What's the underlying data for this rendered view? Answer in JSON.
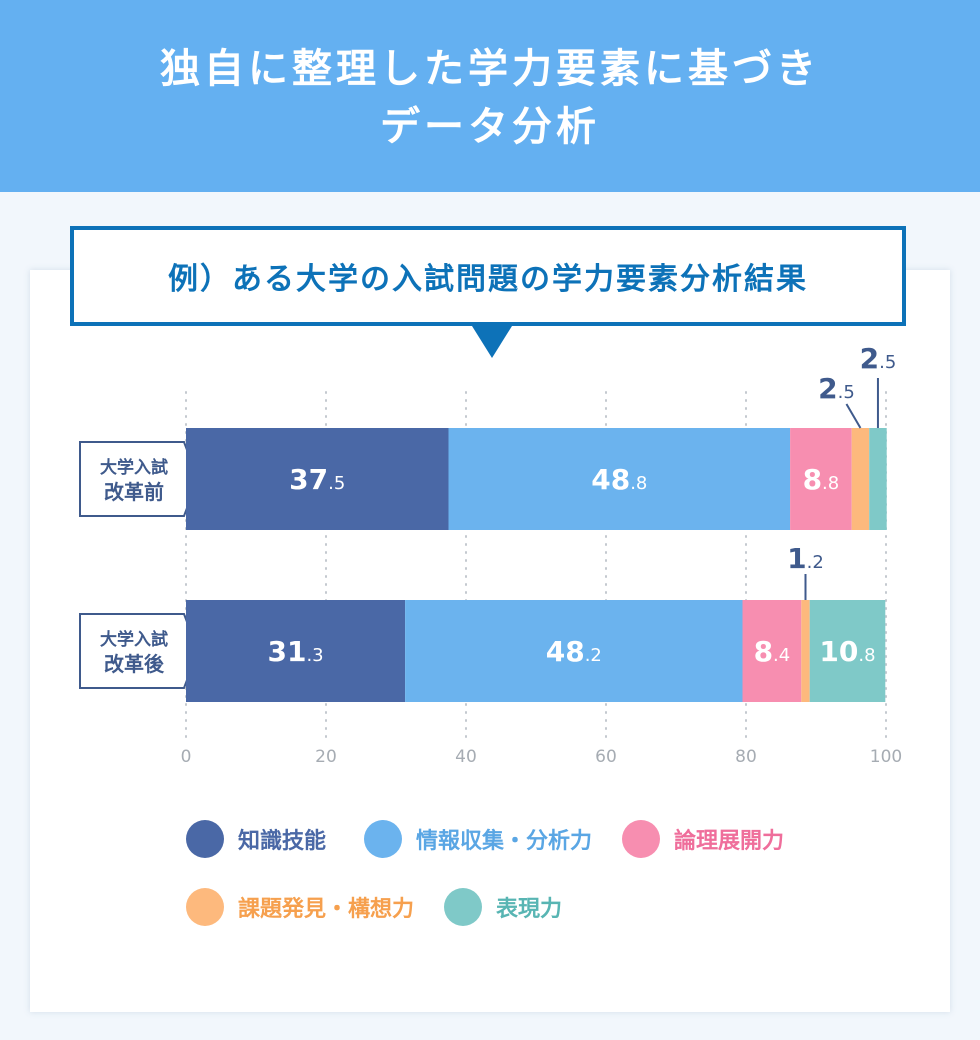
{
  "header": {
    "title_line1": "独自に整理した学力要素に基づき",
    "title_line2": "データ分析"
  },
  "example_title": "例）ある大学の入試問題の学力要素分析結果",
  "chart_data": {
    "type": "bar",
    "orientation": "horizontal",
    "stacked": true,
    "categories": [
      [
        "大学入試",
        "改革前"
      ],
      [
        "大学入試",
        "改革後"
      ]
    ],
    "series": [
      {
        "name": "知識技能",
        "values": [
          37.5,
          31.3
        ],
        "color": "#4a68a6"
      },
      {
        "name": "情報収集・分析力",
        "values": [
          48.8,
          48.2
        ],
        "color": "#6bb3ee"
      },
      {
        "name": "論理展開力",
        "values": [
          8.8,
          8.4
        ],
        "color": "#f78eb0"
      },
      {
        "name": "課題発見・構想力",
        "values": [
          2.5,
          1.2
        ],
        "color": "#fdb97d"
      },
      {
        "name": "表現力",
        "values": [
          2.5,
          10.8
        ],
        "color": "#7fc9c8"
      }
    ],
    "xlim": [
      0,
      100
    ],
    "xticks": [
      "0",
      "20",
      "40",
      "60",
      "80",
      "100"
    ],
    "grid": true,
    "legend_position": "bottom",
    "legend_text_colors": [
      "#4a68a6",
      "#5aa6e4",
      "#ef6e9b",
      "#f6a04e",
      "#58b5b3"
    ],
    "label_color": "#3f5a8c",
    "tick_color": "#a6acb3"
  }
}
